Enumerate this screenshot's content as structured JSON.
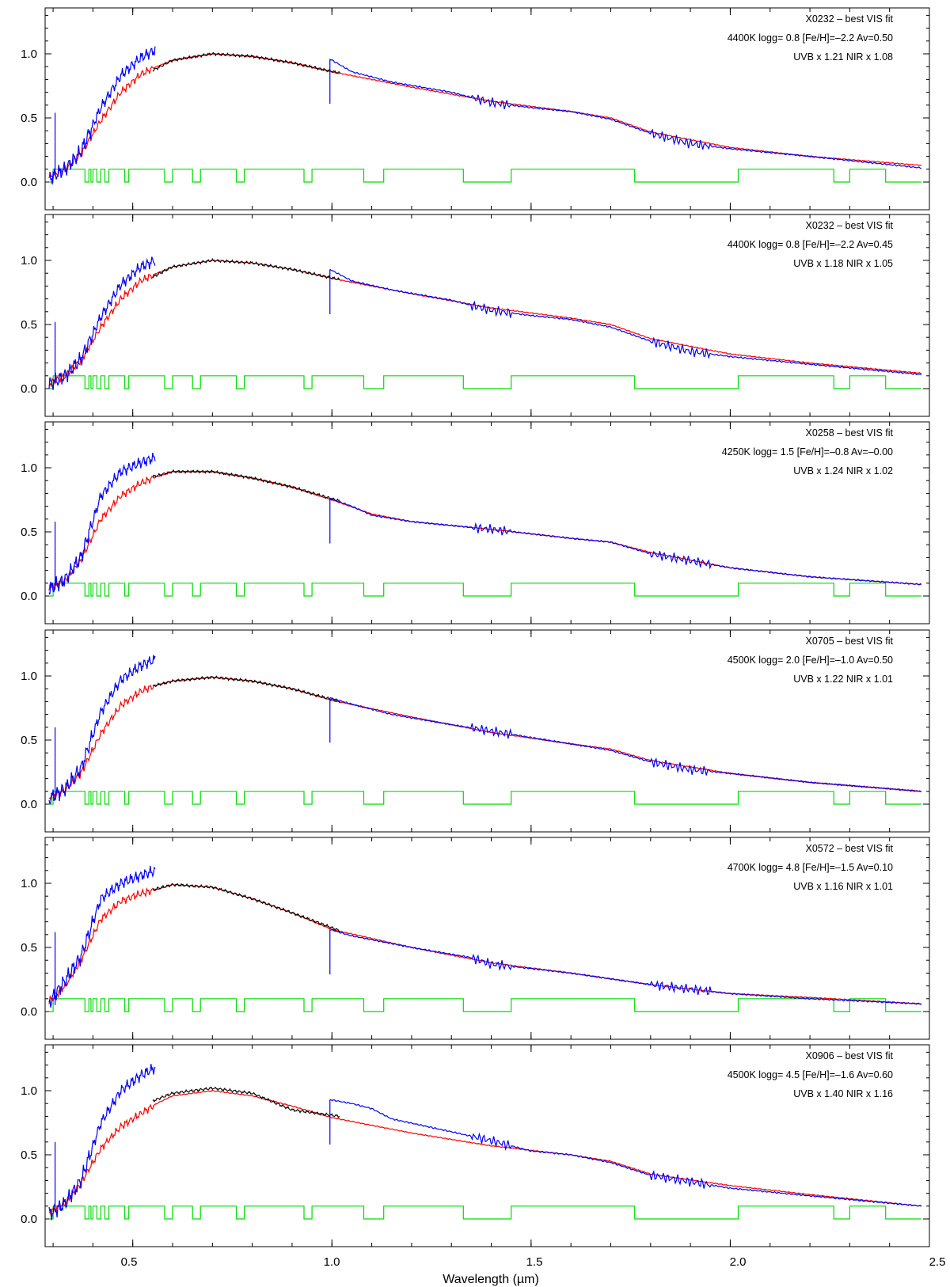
{
  "chart_data": {
    "type": "line",
    "xlabel": "Wavelength (µm)",
    "xlim": [
      0.28,
      2.5
    ],
    "ylim": [
      -0.02,
      1.42
    ],
    "xticks": [
      "0.5",
      "1.0",
      "1.5",
      "2.0",
      "2.5"
    ],
    "xtick_values": [
      0.5,
      1.0,
      1.5,
      2.0,
      2.5
    ],
    "yticks": [
      "0.0",
      "0.5",
      "1.0"
    ],
    "ytick_values": [
      0.0,
      0.5,
      1.0
    ],
    "series_colors": {
      "observed_uvb_nir": "#0000ff",
      "observed_vis": "#000000",
      "model": "#ff0000",
      "mask": "#00dd00"
    },
    "panels": [
      {
        "annotations": [
          "X0232 – best VIS fit",
          "4400K logg= 0.8 [Fe/H]=–2.2 Av=0.50",
          "UVB x 1.21  NIR x 1.08"
        ],
        "teff": 4400,
        "uvb_scale": 1.21,
        "nir_scale": 1.08,
        "model": [
          [
            0.29,
            0.04
          ],
          [
            0.33,
            0.1
          ],
          [
            0.37,
            0.22
          ],
          [
            0.42,
            0.48
          ],
          [
            0.47,
            0.7
          ],
          [
            0.52,
            0.84
          ],
          [
            0.56,
            0.9
          ],
          [
            0.6,
            0.95
          ],
          [
            0.7,
            1.0
          ],
          [
            0.8,
            0.98
          ],
          [
            0.9,
            0.93
          ],
          [
            1.0,
            0.86
          ],
          [
            1.2,
            0.74
          ],
          [
            1.4,
            0.63
          ],
          [
            1.6,
            0.55
          ],
          [
            1.7,
            0.5
          ],
          [
            1.8,
            0.39
          ],
          [
            2.0,
            0.27
          ],
          [
            2.2,
            0.2
          ],
          [
            2.48,
            0.13
          ]
        ],
        "uvb": [
          [
            0.29,
            0.03
          ],
          [
            0.33,
            0.1
          ],
          [
            0.37,
            0.24
          ],
          [
            0.42,
            0.58
          ],
          [
            0.47,
            0.83
          ],
          [
            0.52,
            0.97
          ],
          [
            0.557,
            1.03
          ]
        ],
        "vis": [
          [
            0.55,
            0.87
          ],
          [
            0.6,
            0.95
          ],
          [
            0.7,
            1.0
          ],
          [
            0.8,
            0.98
          ],
          [
            0.9,
            0.93
          ],
          [
            1.02,
            0.85
          ]
        ],
        "nir": [
          [
            0.995,
            0.96
          ],
          [
            1.05,
            0.86
          ],
          [
            1.15,
            0.78
          ],
          [
            1.3,
            0.7
          ],
          [
            1.4,
            0.62
          ],
          [
            1.5,
            0.58
          ],
          [
            1.6,
            0.55
          ],
          [
            1.7,
            0.49
          ],
          [
            1.8,
            0.38
          ],
          [
            1.9,
            0.3
          ],
          [
            2.0,
            0.26
          ],
          [
            2.2,
            0.2
          ],
          [
            2.48,
            0.11
          ]
        ],
        "spike": [
          0.305,
          0.54
        ]
      },
      {
        "annotations": [
          "X0232 – best VIS fit",
          "4400K logg= 0.8 [Fe/H]=–2.2 Av=0.45",
          "UVB x 1.18  NIR x 1.05"
        ],
        "teff": 4400,
        "uvb_scale": 1.18,
        "nir_scale": 1.05,
        "model": [
          [
            0.29,
            0.04
          ],
          [
            0.33,
            0.1
          ],
          [
            0.37,
            0.22
          ],
          [
            0.42,
            0.48
          ],
          [
            0.47,
            0.7
          ],
          [
            0.52,
            0.84
          ],
          [
            0.56,
            0.9
          ],
          [
            0.6,
            0.95
          ],
          [
            0.7,
            1.0
          ],
          [
            0.8,
            0.98
          ],
          [
            0.9,
            0.93
          ],
          [
            1.0,
            0.86
          ],
          [
            1.2,
            0.74
          ],
          [
            1.4,
            0.63
          ],
          [
            1.6,
            0.55
          ],
          [
            1.7,
            0.5
          ],
          [
            1.8,
            0.39
          ],
          [
            2.0,
            0.27
          ],
          [
            2.2,
            0.2
          ],
          [
            2.48,
            0.12
          ]
        ],
        "uvb": [
          [
            0.29,
            0.03
          ],
          [
            0.33,
            0.1
          ],
          [
            0.37,
            0.23
          ],
          [
            0.42,
            0.56
          ],
          [
            0.47,
            0.81
          ],
          [
            0.52,
            0.95
          ],
          [
            0.557,
            1.0
          ]
        ],
        "vis": [
          [
            0.55,
            0.87
          ],
          [
            0.6,
            0.95
          ],
          [
            0.7,
            1.0
          ],
          [
            0.8,
            0.98
          ],
          [
            0.9,
            0.93
          ],
          [
            1.02,
            0.85
          ]
        ],
        "nir": [
          [
            0.995,
            0.93
          ],
          [
            1.05,
            0.84
          ],
          [
            1.15,
            0.77
          ],
          [
            1.3,
            0.69
          ],
          [
            1.4,
            0.61
          ],
          [
            1.5,
            0.57
          ],
          [
            1.6,
            0.54
          ],
          [
            1.7,
            0.48
          ],
          [
            1.8,
            0.37
          ],
          [
            1.9,
            0.29
          ],
          [
            2.0,
            0.25
          ],
          [
            2.2,
            0.19
          ],
          [
            2.48,
            0.11
          ]
        ],
        "spike": [
          0.305,
          0.52
        ]
      },
      {
        "annotations": [
          "X0258 – best VIS fit",
          "4250K logg= 1.5 [Fe/H]=–0.8 Av=–0.00",
          "UVB x 1.24  NIR x 1.02"
        ],
        "teff": 4250,
        "uvb_scale": 1.24,
        "nir_scale": 1.02,
        "model": [
          [
            0.29,
            0.06
          ],
          [
            0.33,
            0.12
          ],
          [
            0.37,
            0.28
          ],
          [
            0.42,
            0.6
          ],
          [
            0.47,
            0.78
          ],
          [
            0.52,
            0.88
          ],
          [
            0.56,
            0.93
          ],
          [
            0.6,
            0.97
          ],
          [
            0.7,
            0.97
          ],
          [
            0.8,
            0.92
          ],
          [
            0.9,
            0.85
          ],
          [
            1.0,
            0.75
          ],
          [
            1.1,
            0.64
          ],
          [
            1.2,
            0.58
          ],
          [
            1.4,
            0.52
          ],
          [
            1.6,
            0.45
          ],
          [
            1.7,
            0.42
          ],
          [
            1.8,
            0.34
          ],
          [
            2.0,
            0.22
          ],
          [
            2.2,
            0.15
          ],
          [
            2.48,
            0.09
          ]
        ],
        "uvb": [
          [
            0.29,
            0.05
          ],
          [
            0.33,
            0.13
          ],
          [
            0.37,
            0.3
          ],
          [
            0.42,
            0.78
          ],
          [
            0.47,
            0.97
          ],
          [
            0.52,
            1.04
          ],
          [
            0.557,
            1.08
          ]
        ],
        "vis": [
          [
            0.55,
            0.93
          ],
          [
            0.6,
            0.97
          ],
          [
            0.7,
            0.97
          ],
          [
            0.8,
            0.92
          ],
          [
            0.9,
            0.85
          ],
          [
            1.02,
            0.74
          ]
        ],
        "nir": [
          [
            0.995,
            0.76
          ],
          [
            1.05,
            0.7
          ],
          [
            1.1,
            0.63
          ],
          [
            1.2,
            0.58
          ],
          [
            1.4,
            0.52
          ],
          [
            1.6,
            0.45
          ],
          [
            1.7,
            0.42
          ],
          [
            1.8,
            0.33
          ],
          [
            2.0,
            0.22
          ],
          [
            2.2,
            0.15
          ],
          [
            2.48,
            0.09
          ]
        ],
        "spike": [
          0.305,
          0.58
        ]
      },
      {
        "annotations": [
          "X0705 – best VIS fit",
          "4500K logg= 2.0 [Fe/H]=–1.0 Av=0.50",
          "UVB x 1.22  NIR x 1.01"
        ],
        "teff": 4500,
        "uvb_scale": 1.22,
        "nir_scale": 1.01,
        "model": [
          [
            0.29,
            0.05
          ],
          [
            0.33,
            0.11
          ],
          [
            0.37,
            0.24
          ],
          [
            0.42,
            0.55
          ],
          [
            0.47,
            0.77
          ],
          [
            0.52,
            0.88
          ],
          [
            0.56,
            0.93
          ],
          [
            0.6,
            0.96
          ],
          [
            0.7,
            0.99
          ],
          [
            0.8,
            0.96
          ],
          [
            0.9,
            0.9
          ],
          [
            1.0,
            0.81
          ],
          [
            1.2,
            0.68
          ],
          [
            1.4,
            0.56
          ],
          [
            1.6,
            0.47
          ],
          [
            1.7,
            0.43
          ],
          [
            1.8,
            0.34
          ],
          [
            2.0,
            0.24
          ],
          [
            2.2,
            0.17
          ],
          [
            2.48,
            0.1
          ]
        ],
        "uvb": [
          [
            0.29,
            0.04
          ],
          [
            0.33,
            0.12
          ],
          [
            0.37,
            0.28
          ],
          [
            0.42,
            0.72
          ],
          [
            0.47,
            0.97
          ],
          [
            0.52,
            1.08
          ],
          [
            0.557,
            1.13
          ]
        ],
        "vis": [
          [
            0.55,
            0.92
          ],
          [
            0.6,
            0.96
          ],
          [
            0.7,
            0.99
          ],
          [
            0.8,
            0.96
          ],
          [
            0.9,
            0.9
          ],
          [
            1.02,
            0.8
          ]
        ],
        "nir": [
          [
            0.995,
            0.83
          ],
          [
            1.05,
            0.78
          ],
          [
            1.15,
            0.7
          ],
          [
            1.3,
            0.62
          ],
          [
            1.4,
            0.57
          ],
          [
            1.5,
            0.52
          ],
          [
            1.6,
            0.47
          ],
          [
            1.7,
            0.42
          ],
          [
            1.8,
            0.33
          ],
          [
            1.9,
            0.27
          ],
          [
            2.0,
            0.24
          ],
          [
            2.2,
            0.17
          ],
          [
            2.48,
            0.1
          ]
        ],
        "spike": [
          0.305,
          0.6
        ]
      },
      {
        "annotations": [
          "X0572 – best VIS fit",
          "4700K logg= 4.8 [Fe/H]=–1.5 Av=0.10",
          "UVB x 1.16  NIR x 1.01"
        ],
        "teff": 4700,
        "uvb_scale": 1.16,
        "nir_scale": 1.01,
        "model": [
          [
            0.29,
            0.08
          ],
          [
            0.33,
            0.2
          ],
          [
            0.37,
            0.4
          ],
          [
            0.42,
            0.72
          ],
          [
            0.47,
            0.86
          ],
          [
            0.52,
            0.92
          ],
          [
            0.56,
            0.95
          ],
          [
            0.6,
            0.99
          ],
          [
            0.7,
            0.97
          ],
          [
            0.8,
            0.88
          ],
          [
            0.9,
            0.77
          ],
          [
            1.0,
            0.64
          ],
          [
            1.2,
            0.5
          ],
          [
            1.4,
            0.38
          ],
          [
            1.6,
            0.3
          ],
          [
            1.8,
            0.21
          ],
          [
            2.0,
            0.14
          ],
          [
            2.2,
            0.11
          ],
          [
            2.48,
            0.06
          ]
        ],
        "uvb": [
          [
            0.29,
            0.07
          ],
          [
            0.33,
            0.24
          ],
          [
            0.37,
            0.43
          ],
          [
            0.42,
            0.88
          ],
          [
            0.47,
            1.0
          ],
          [
            0.52,
            1.06
          ],
          [
            0.557,
            1.1
          ]
        ],
        "vis": [
          [
            0.55,
            0.95
          ],
          [
            0.6,
            0.99
          ],
          [
            0.7,
            0.97
          ],
          [
            0.8,
            0.88
          ],
          [
            0.9,
            0.77
          ],
          [
            1.02,
            0.63
          ]
        ],
        "nir": [
          [
            0.995,
            0.64
          ],
          [
            1.05,
            0.59
          ],
          [
            1.2,
            0.5
          ],
          [
            1.35,
            0.42
          ],
          [
            1.4,
            0.37
          ],
          [
            1.6,
            0.3
          ],
          [
            1.8,
            0.21
          ],
          [
            2.0,
            0.14
          ],
          [
            2.2,
            0.1
          ],
          [
            2.48,
            0.06
          ]
        ],
        "spike": [
          0.305,
          0.62
        ]
      },
      {
        "annotations": [
          "X0906 – best VIS fit",
          "4500K logg= 4.5 [Fe/H]=–1.6 Av=0.60",
          "UVB x 1.40  NIR x 1.16"
        ],
        "teff": 4500,
        "uvb_scale": 1.4,
        "nir_scale": 1.16,
        "model": [
          [
            0.29,
            0.05
          ],
          [
            0.33,
            0.12
          ],
          [
            0.37,
            0.28
          ],
          [
            0.42,
            0.55
          ],
          [
            0.47,
            0.72
          ],
          [
            0.52,
            0.82
          ],
          [
            0.56,
            0.9
          ],
          [
            0.6,
            0.96
          ],
          [
            0.7,
            1.0
          ],
          [
            0.8,
            0.96
          ],
          [
            0.9,
            0.88
          ],
          [
            1.0,
            0.79
          ],
          [
            1.2,
            0.67
          ],
          [
            1.4,
            0.57
          ],
          [
            1.6,
            0.5
          ],
          [
            1.7,
            0.45
          ],
          [
            1.8,
            0.35
          ],
          [
            2.0,
            0.26
          ],
          [
            2.2,
            0.19
          ],
          [
            2.48,
            0.1
          ]
        ],
        "uvb": [
          [
            0.29,
            0.04
          ],
          [
            0.33,
            0.12
          ],
          [
            0.37,
            0.3
          ],
          [
            0.42,
            0.75
          ],
          [
            0.47,
            1.0
          ],
          [
            0.52,
            1.12
          ],
          [
            0.557,
            1.18
          ]
        ],
        "vis": [
          [
            0.55,
            0.92
          ],
          [
            0.6,
            0.98
          ],
          [
            0.7,
            1.02
          ],
          [
            0.8,
            0.98
          ],
          [
            0.9,
            0.85
          ],
          [
            1.02,
            0.8
          ]
        ],
        "nir": [
          [
            0.995,
            0.93
          ],
          [
            1.05,
            0.9
          ],
          [
            1.1,
            0.86
          ],
          [
            1.15,
            0.78
          ],
          [
            1.3,
            0.68
          ],
          [
            1.4,
            0.61
          ],
          [
            1.5,
            0.53
          ],
          [
            1.6,
            0.5
          ],
          [
            1.7,
            0.44
          ],
          [
            1.8,
            0.34
          ],
          [
            1.9,
            0.29
          ],
          [
            2.0,
            0.24
          ],
          [
            2.2,
            0.18
          ],
          [
            2.48,
            0.1
          ]
        ],
        "spike": [
          0.305,
          0.6
        ]
      }
    ],
    "mask_segments": [
      [
        0.3,
        0.38
      ],
      [
        0.39,
        0.395
      ],
      [
        0.4,
        0.41
      ],
      [
        0.42,
        0.43
      ],
      [
        0.44,
        0.48
      ],
      [
        0.49,
        0.58
      ],
      [
        0.6,
        0.65
      ],
      [
        0.67,
        0.76
      ],
      [
        0.78,
        0.93
      ],
      [
        0.95,
        1.08
      ],
      [
        1.13,
        1.33
      ],
      [
        1.45,
        1.76
      ],
      [
        2.02,
        2.26
      ],
      [
        2.3,
        2.39
      ]
    ]
  }
}
